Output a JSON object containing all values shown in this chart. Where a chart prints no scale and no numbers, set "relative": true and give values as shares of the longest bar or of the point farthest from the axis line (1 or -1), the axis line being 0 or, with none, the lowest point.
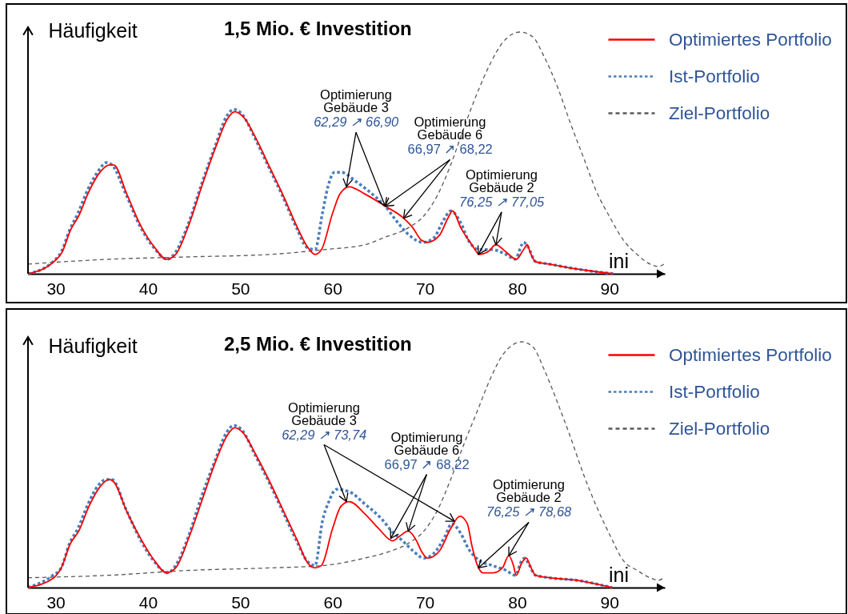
{
  "chart_data": [
    {
      "type": "line",
      "title": "1,5 Mio. € Investition",
      "xlabel": "ini",
      "ylabel": "Häufigkeit",
      "relative": true,
      "xlim": [
        27,
        96
      ],
      "xticks": [
        30,
        40,
        50,
        60,
        70,
        80,
        90
      ],
      "legend": "top right",
      "series": [
        {
          "name": "Optimiertes Portfolio",
          "color": "#ff0000",
          "line_style": "solid",
          "x": [
            27.0,
            29.8,
            30.7,
            31.6,
            32.5,
            33.6,
            34.8,
            35.8,
            36.3,
            37.7,
            39.2,
            40.7,
            42.0,
            43.0,
            44.5,
            45.9,
            47.4,
            48.6,
            49.4,
            50.3,
            51.7,
            53.2,
            54.7,
            56.2,
            57.3,
            58.1,
            58.8,
            60.0,
            60.8,
            61.8,
            63.5,
            65.7,
            67.7,
            68.7,
            69.6,
            70.3,
            71.6,
            72.5,
            73.0,
            73.9,
            75.1,
            75.9,
            76.8,
            77.7,
            78.8,
            79.9,
            80.7,
            81.1,
            81.4,
            82.0,
            83.5,
            86.4,
            90.4
          ],
          "values": [
            0,
            0.05,
            0.09,
            0.18,
            0.24,
            0.34,
            0.42,
            0.45,
            0.45,
            0.33,
            0.2,
            0.11,
            0.06,
            0.08,
            0.21,
            0.37,
            0.53,
            0.64,
            0.67,
            0.65,
            0.56,
            0.44,
            0.32,
            0.19,
            0.11,
            0.08,
            0.1,
            0.25,
            0.33,
            0.36,
            0.33,
            0.28,
            0.23,
            0.19,
            0.14,
            0.13,
            0.16,
            0.23,
            0.26,
            0.19,
            0.12,
            0.08,
            0.09,
            0.12,
            0.09,
            0.06,
            0.1,
            0.12,
            0.09,
            0.05,
            0.04,
            0.02,
            0
          ]
        },
        {
          "name": "Ist-Portfolio",
          "color": "#4a7ebb",
          "line_style": "dotted",
          "x": [
            27.0,
            29.7,
            30.6,
            31.5,
            32.4,
            33.5,
            34.7,
            35.5,
            36.1,
            37.6,
            39.1,
            40.6,
            42.1,
            43.0,
            44.4,
            45.8,
            47.3,
            48.5,
            49.3,
            50.2,
            51.6,
            53.1,
            54.6,
            56.1,
            57.2,
            58.1,
            58.9,
            59.5,
            60.2,
            60.9,
            62.6,
            64.6,
            65.7,
            66.9,
            68.3,
            69.8,
            71.0,
            72.0,
            72.8,
            73.9,
            74.7,
            75.9,
            77.3,
            78.8,
            79.8,
            80.5,
            80.7,
            81.2,
            82.0,
            83.5,
            86.4,
            90.4
          ],
          "values": [
            0,
            0.05,
            0.09,
            0.18,
            0.25,
            0.35,
            0.43,
            0.46,
            0.45,
            0.33,
            0.2,
            0.11,
            0.06,
            0.09,
            0.21,
            0.37,
            0.53,
            0.65,
            0.68,
            0.66,
            0.56,
            0.44,
            0.32,
            0.19,
            0.11,
            0.1,
            0.25,
            0.36,
            0.42,
            0.42,
            0.38,
            0.32,
            0.28,
            0.22,
            0.16,
            0.13,
            0.15,
            0.22,
            0.26,
            0.21,
            0.14,
            0.1,
            0.1,
            0.08,
            0.06,
            0.12,
            0.13,
            0.11,
            0.05,
            0.04,
            0.02,
            0
          ]
        },
        {
          "name": "Ziel-Portfolio",
          "color": "#595959",
          "line_style": "dashed",
          "x": [
            27.0,
            35.7,
            44.5,
            53.2,
            59.1,
            63.5,
            65.6,
            68.2,
            69.9,
            71.3,
            72.8,
            74.2,
            75.7,
            77.1,
            78.5,
            80.3,
            81.7,
            82.9,
            84.3,
            85.8,
            87.2,
            88.6,
            90.1,
            91.5,
            93.0,
            94.4,
            95.3,
            95.9
          ],
          "values": [
            0.04,
            0.06,
            0.07,
            0.08,
            0.1,
            0.12,
            0.15,
            0.19,
            0.24,
            0.32,
            0.45,
            0.6,
            0.75,
            0.87,
            0.96,
            1,
            0.98,
            0.9,
            0.78,
            0.62,
            0.48,
            0.34,
            0.23,
            0.14,
            0.08,
            0.04,
            0.03,
            0.04
          ]
        }
      ],
      "annotations": [
        "Optimierung\nGebäude 3",
        {
          "text": "62,29 ↗",
          "x": 61.5,
          "y": 0.36
        },
        {
          "text": "66,90",
          "x": 65.7,
          "y": 0.28
        },
        "Optimierung\nGebäude 6",
        {
          "text": "66,97 ↗",
          "x": 65.7,
          "y": 0.28
        },
        {
          "text": "68,22",
          "x": 67.7,
          "y": 0.23
        },
        "Optimierung\nGebäude 2",
        {
          "text": "76,25 ↗",
          "x": 75.8,
          "y": 0.08
        },
        {
          "text": "77,05",
          "x": 77.7,
          "y": 0.12
        }
      ]
    },
    {
      "type": "line",
      "title": "2,5 Mio. € Investition",
      "xlabel": "ini",
      "ylabel": "Häufigkeit",
      "relative": true,
      "xlim": [
        27,
        96
      ],
      "xticks": [
        30,
        40,
        50,
        60,
        70,
        80,
        90
      ],
      "legend": "top right",
      "series": [
        {
          "name": "Optimiertes Portfolio",
          "color": "#ff0000",
          "line_style": "solid",
          "x": [
            27.0,
            29.8,
            30.6,
            31.6,
            32.5,
            33.6,
            34.8,
            35.8,
            36.3,
            37.7,
            39.2,
            40.7,
            42.0,
            43.0,
            44.5,
            45.9,
            47.4,
            48.6,
            49.4,
            50.3,
            51.7,
            53.2,
            54.7,
            56.2,
            57.3,
            58.1,
            58.8,
            60.0,
            60.9,
            61.8,
            63.5,
            65.0,
            66.5,
            67.3,
            68.2,
            69.1,
            69.6,
            70.3,
            71.6,
            72.8,
            73.8,
            74.6,
            75.1,
            75.7,
            76.3,
            77.4,
            78.4,
            79.1,
            79.6,
            79.9,
            80.5,
            81.0,
            81.4,
            82.0,
            83.5,
            86.4,
            90.3
          ],
          "values": [
            0,
            0.04,
            0.08,
            0.18,
            0.23,
            0.33,
            0.41,
            0.44,
            0.43,
            0.31,
            0.2,
            0.11,
            0.06,
            0.08,
            0.21,
            0.36,
            0.52,
            0.62,
            0.65,
            0.63,
            0.54,
            0.43,
            0.31,
            0.19,
            0.1,
            0.08,
            0.09,
            0.24,
            0.33,
            0.35,
            0.3,
            0.24,
            0.19,
            0.21,
            0.23,
            0.19,
            0.15,
            0.12,
            0.15,
            0.24,
            0.29,
            0.26,
            0.17,
            0.09,
            0.06,
            0.06,
            0.08,
            0.13,
            0.09,
            0.05,
            0.1,
            0.12,
            0.09,
            0.05,
            0.04,
            0.03,
            0
          ]
        },
        {
          "name": "Ist-Portfolio",
          "color": "#4a7ebb",
          "line_style": "dotted",
          "x": [
            27.0,
            29.7,
            30.6,
            31.5,
            32.4,
            33.5,
            34.7,
            35.5,
            36.1,
            37.6,
            39.1,
            40.6,
            42.1,
            43.0,
            44.4,
            45.8,
            47.3,
            48.5,
            49.3,
            50.2,
            51.6,
            53.1,
            54.6,
            56.1,
            57.2,
            58.1,
            58.9,
            59.6,
            60.4,
            61.8,
            63.5,
            65.3,
            66.4,
            67.6,
            68.7,
            69.9,
            71.0,
            72.2,
            72.9,
            73.9,
            74.7,
            75.9,
            77.3,
            78.8,
            79.8,
            80.5,
            80.8,
            81.2,
            82.0,
            83.5,
            86.4,
            90.3
          ],
          "values": [
            0,
            0.05,
            0.08,
            0.18,
            0.24,
            0.34,
            0.42,
            0.44,
            0.44,
            0.32,
            0.2,
            0.11,
            0.06,
            0.09,
            0.21,
            0.37,
            0.52,
            0.63,
            0.66,
            0.64,
            0.54,
            0.43,
            0.31,
            0.19,
            0.11,
            0.09,
            0.27,
            0.35,
            0.4,
            0.39,
            0.34,
            0.28,
            0.23,
            0.19,
            0.15,
            0.12,
            0.14,
            0.21,
            0.26,
            0.22,
            0.16,
            0.11,
            0.09,
            0.07,
            0.05,
            0.11,
            0.12,
            0.1,
            0.05,
            0.04,
            0.03,
            0
          ]
        },
        {
          "name": "Ziel-Portfolio",
          "color": "#595959",
          "line_style": "dashed",
          "x": [
            27.0,
            35.7,
            44.5,
            53.2,
            59.1,
            63.5,
            65.6,
            68.2,
            69.9,
            71.3,
            72.8,
            74.2,
            75.7,
            77.1,
            78.5,
            80.5,
            81.7,
            82.9,
            84.3,
            85.8,
            87.2,
            88.6,
            90.1,
            91.5,
            93.0,
            94.4,
            95.3,
            95.9
          ],
          "values": [
            0.04,
            0.05,
            0.07,
            0.08,
            0.09,
            0.12,
            0.14,
            0.18,
            0.23,
            0.31,
            0.44,
            0.58,
            0.72,
            0.85,
            0.95,
            1,
            0.98,
            0.89,
            0.76,
            0.61,
            0.46,
            0.33,
            0.21,
            0.11,
            0.07,
            0.04,
            0.03,
            0.04
          ]
        }
      ],
      "annotations": [
        "Optimierung\nGebäude 3",
        {
          "text": "62,29 ↗",
          "x": 61.5,
          "y": 0.35
        },
        {
          "text": "73,74",
          "x": 73.2,
          "y": 0.27
        },
        "Optimierung\nGebäude 6",
        {
          "text": "66,97 ↗",
          "x": 66.3,
          "y": 0.2
        },
        {
          "text": "68,22",
          "x": 68.2,
          "y": 0.23
        },
        "Optimierung\nGebäude 2",
        {
          "text": "76,25 ↗",
          "x": 75.8,
          "y": 0.08
        },
        {
          "text": "78,68",
          "x": 79.1,
          "y": 0.13
        }
      ]
    }
  ]
}
